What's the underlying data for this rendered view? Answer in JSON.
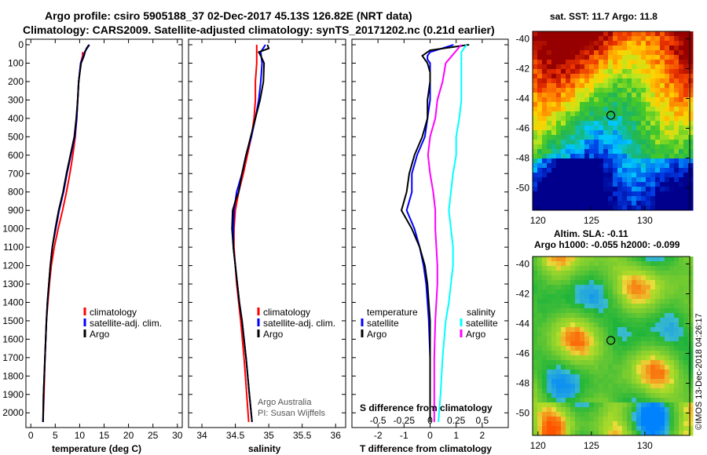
{
  "title_line1": "Argo profile: csiro 5905188_37 02-Dec-2017 45.13S 126.82E (NRT data)",
  "title_line2": "Climatology: CARS2009. Satellite-adjusted climatology: synTS_20171202.nc (0.21d earlier)",
  "sst_title": "sat. SST: 11.7 Argo: 11.8",
  "sla_title1": "Altim. SLA: -0.11",
  "sla_title2": "Argo h1000: -0.055 h2000: -0.099",
  "credit": "Argo Australia",
  "pi": "PI: Susan Wijffels",
  "watermark": "©IMOS 13-Dec-2018 04:26:17",
  "colors": {
    "climatology": "#ff0000",
    "satellite": "#0000ff",
    "argo": "#000000",
    "sal_satellite": "#00ffff",
    "sal_argo": "#ff00ff"
  },
  "chart_data": [
    {
      "type": "line",
      "id": "temperature",
      "xlabel": "temperature (deg C)",
      "xlim": [
        -1,
        31
      ],
      "xticks": [
        0,
        5,
        10,
        15,
        20,
        25,
        30
      ],
      "ylim": [
        2080,
        -30
      ],
      "yticks": [
        0,
        100,
        200,
        300,
        400,
        500,
        600,
        700,
        800,
        900,
        1000,
        1100,
        1200,
        1300,
        1400,
        1500,
        1600,
        1700,
        1800,
        1900,
        2000
      ],
      "legend": [
        "climatology",
        "satellite-adj. clim.",
        "Argo"
      ],
      "legend_position": "lower-right",
      "series": [
        {
          "name": "climatology",
          "depth": [
            40,
            60,
            100,
            200,
            300,
            400,
            500,
            600,
            700,
            800,
            900,
            1000,
            1100,
            1200,
            1300,
            1400,
            1500,
            1700,
            1900,
            2050
          ],
          "values": [
            10.6,
            10.6,
            10.2,
            9.8,
            9.6,
            9.4,
            9.1,
            8.6,
            8.0,
            7.3,
            6.5,
            5.6,
            4.8,
            4.2,
            3.8,
            3.5,
            3.2,
            2.9,
            2.7,
            2.5
          ]
        },
        {
          "name": "satellite-adj. clim.",
          "depth": [
            0,
            20,
            40,
            60,
            100,
            200,
            300,
            400,
            500,
            600,
            700,
            800,
            900,
            1000,
            1100,
            1200,
            1300,
            1400,
            1500,
            1700,
            1900,
            2050
          ],
          "values": [
            12.0,
            11.5,
            11.0,
            10.8,
            10.2,
            9.8,
            9.6,
            9.4,
            9.0,
            8.2,
            7.4,
            6.7,
            5.8,
            5.1,
            4.4,
            4.0,
            3.7,
            3.4,
            3.2,
            2.9,
            2.6,
            2.5
          ]
        },
        {
          "name": "Argo",
          "depth": [
            0,
            20,
            40,
            60,
            100,
            200,
            300,
            400,
            500,
            600,
            700,
            800,
            900,
            1000,
            1100,
            1200,
            1300,
            1400,
            1500,
            1700,
            1900,
            2050
          ],
          "values": [
            11.9,
            11.4,
            11.1,
            10.9,
            10.3,
            9.8,
            9.6,
            9.3,
            8.9,
            8.1,
            7.3,
            6.6,
            5.7,
            5.0,
            4.4,
            4.0,
            3.7,
            3.4,
            3.2,
            2.9,
            2.6,
            2.5
          ]
        }
      ]
    },
    {
      "type": "line",
      "id": "salinity",
      "xlabel": "salinity",
      "xlim": [
        33.8,
        36.15
      ],
      "xticks": [
        34,
        34.5,
        35,
        35.5,
        36
      ],
      "ylim": [
        2080,
        -30
      ],
      "legend": [
        "climatology",
        "satellite-adj. clim.",
        "Argo"
      ],
      "legend_position": "lower-right",
      "series": [
        {
          "name": "climatology",
          "depth": [
            0,
            100,
            200,
            300,
            400,
            500,
            600,
            700,
            800,
            900,
            1000,
            1100,
            1200,
            1300,
            1400,
            1500,
            1700,
            1900,
            2050
          ],
          "values": [
            34.82,
            34.82,
            34.8,
            34.8,
            34.78,
            34.74,
            34.68,
            34.62,
            34.55,
            34.5,
            34.48,
            34.48,
            34.5,
            34.52,
            34.55,
            34.58,
            34.63,
            34.67,
            34.7
          ]
        },
        {
          "name": "satellite-adj. clim.",
          "depth": [
            0,
            40,
            100,
            200,
            300,
            400,
            500,
            600,
            700,
            800,
            900,
            1000,
            1100,
            1200,
            1300,
            1400,
            1500,
            1700,
            1900,
            2050
          ],
          "values": [
            34.95,
            34.88,
            34.9,
            34.88,
            34.85,
            34.8,
            34.74,
            34.66,
            34.6,
            34.52,
            34.48,
            34.47,
            34.47,
            34.5,
            34.53,
            34.56,
            34.6,
            34.66,
            34.71,
            34.75
          ]
        },
        {
          "name": "Argo",
          "depth": [
            0,
            20,
            40,
            60,
            100,
            200,
            300,
            400,
            500,
            600,
            700,
            800,
            850,
            900,
            1000,
            1100,
            1200,
            1300,
            1400,
            1500,
            1700,
            1900,
            2050
          ],
          "values": [
            34.98,
            35.0,
            34.85,
            34.88,
            34.93,
            34.92,
            34.87,
            34.8,
            34.73,
            34.66,
            34.6,
            34.55,
            34.5,
            34.46,
            34.45,
            34.47,
            34.5,
            34.53,
            34.56,
            34.6,
            34.66,
            34.71,
            34.75
          ]
        }
      ]
    },
    {
      "type": "line",
      "id": "differences",
      "xlabel": "T difference from climatology",
      "xlabel_top": "S difference from climatology",
      "xlim": [
        -3,
        3
      ],
      "xticks": [
        -2,
        -1,
        0,
        1,
        2
      ],
      "sticks_labels": [
        "-0.5",
        "-0.25",
        "0",
        "0.25",
        "0.5"
      ],
      "sticks_values": [
        -0.5,
        -0.25,
        0,
        0.25,
        0.5
      ],
      "ylim": [
        2080,
        -30
      ],
      "legend": [
        "temperature",
        "satellite",
        "Argo",
        "salinity",
        "satellite",
        "Argo"
      ],
      "series": [
        {
          "name": "T satellite",
          "depth": [
            0,
            40,
            60,
            80,
            100,
            150,
            200,
            300,
            400,
            500,
            600,
            700,
            800,
            900,
            1000,
            1100,
            1200,
            1300,
            1400,
            1500,
            1700,
            1900,
            2050
          ],
          "values": [
            0.9,
            0.0,
            -0.1,
            -0.1,
            0.0,
            0.0,
            0.0,
            0.0,
            -0.1,
            -0.2,
            -0.5,
            -0.7,
            -0.7,
            -0.9,
            -0.6,
            -0.4,
            -0.25,
            -0.15,
            -0.1,
            -0.05,
            0.0,
            0.0,
            0.0
          ]
        },
        {
          "name": "T Argo",
          "depth": [
            0,
            30,
            60,
            80,
            100,
            150,
            200,
            300,
            400,
            500,
            600,
            700,
            800,
            850,
            900,
            1000,
            1100,
            1200,
            1300,
            1400,
            1500,
            1700,
            1900,
            2050
          ],
          "values": [
            1.5,
            0.0,
            -0.3,
            -0.2,
            -0.1,
            0.0,
            0.0,
            -0.1,
            -0.1,
            -0.3,
            -0.6,
            -0.8,
            -0.9,
            -1.0,
            -1.1,
            -0.7,
            -0.4,
            -0.2,
            -0.1,
            -0.05,
            0.0,
            0.0,
            0.0,
            0.0
          ]
        },
        {
          "name": "S satellite",
          "depth": [
            0,
            40,
            100,
            200,
            300,
            400,
            500,
            600,
            700,
            800,
            900,
            1000,
            1100,
            1200,
            1300,
            1400,
            1500,
            1700,
            1900,
            2050
          ],
          "values": [
            0.35,
            0.3,
            0.3,
            0.3,
            0.3,
            0.28,
            0.25,
            0.25,
            0.22,
            0.2,
            0.18,
            0.2,
            0.22,
            0.22,
            0.2,
            0.18,
            0.15,
            0.12,
            0.1,
            0.08
          ]
        },
        {
          "name": "S Argo",
          "depth": [
            0,
            100,
            200,
            300,
            400,
            500,
            600,
            700,
            800,
            900,
            1000,
            1100,
            1200,
            1300,
            1400,
            1500,
            1700,
            1900,
            2050
          ],
          "values": [
            0.3,
            0.15,
            0.12,
            0.07,
            0.05,
            0.0,
            -0.02,
            0.0,
            0.03,
            0.05,
            0.05,
            0.06,
            0.07,
            0.07,
            0.06,
            0.05,
            0.04,
            0.04,
            0.04
          ]
        }
      ]
    },
    {
      "type": "heatmap",
      "id": "sst_map",
      "title": "sat. SST: 11.7 Argo: 11.8",
      "xlim": [
        119.5,
        134.2
      ],
      "ylim": [
        -51.5,
        -39.5
      ],
      "xticks": [
        120,
        125,
        130
      ],
      "yticks": [
        -40,
        -42,
        -44,
        -46,
        -48,
        -50
      ],
      "marker": {
        "lon": 126.82,
        "lat": -45.13
      }
    },
    {
      "type": "heatmap",
      "id": "sla_map",
      "title": "Altim. SLA: -0.11",
      "xlim": [
        119.5,
        134.2
      ],
      "ylim": [
        -51.5,
        -39.5
      ],
      "xticks": [
        120,
        125,
        130
      ],
      "yticks": [
        -40,
        -42,
        -44,
        -46,
        -48,
        -50
      ],
      "marker": {
        "lon": 126.82,
        "lat": -45.13
      }
    }
  ]
}
